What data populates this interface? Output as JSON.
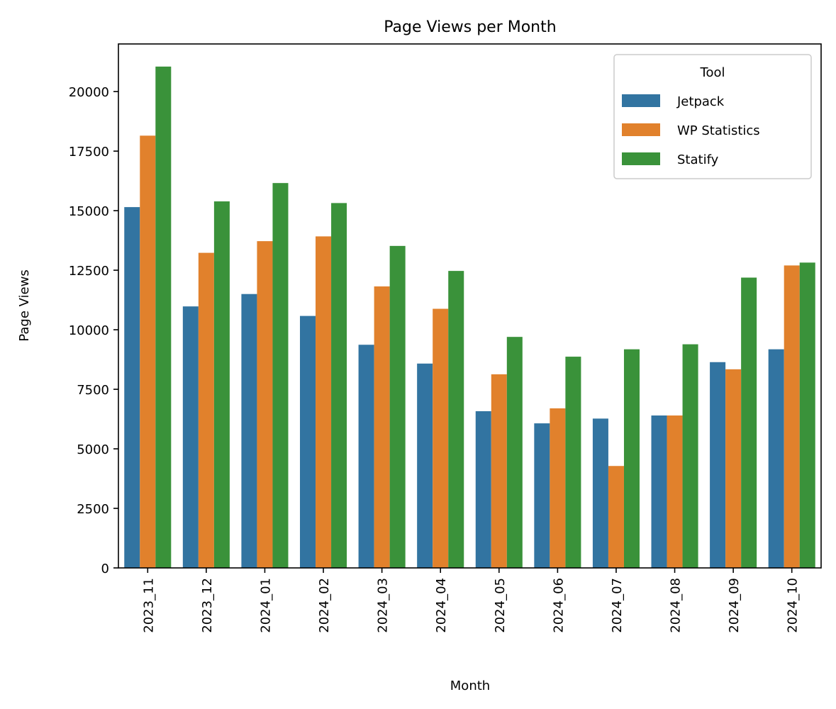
{
  "chart_data": {
    "type": "bar",
    "title": "Page Views per Month",
    "xlabel": "Month",
    "ylabel": "Page Views",
    "ylim": [
      0,
      22000
    ],
    "yticks": [
      0,
      2500,
      5000,
      7500,
      10000,
      12500,
      15000,
      17500,
      20000
    ],
    "grid": false,
    "legend_title": "Tool",
    "legend_position": "top-right",
    "categories": [
      "2023_11",
      "2023_12",
      "2024_01",
      "2024_02",
      "2024_03",
      "2024_04",
      "2024_05",
      "2024_06",
      "2024_07",
      "2024_08",
      "2024_09",
      "2024_10"
    ],
    "series": [
      {
        "name": "Jetpack",
        "color": "#3274a1",
        "values": [
          15150,
          10980,
          11500,
          10580,
          9370,
          8580,
          6580,
          6070,
          6270,
          6400,
          8640,
          9180
        ]
      },
      {
        "name": "WP Statistics",
        "color": "#e1812c",
        "values": [
          18150,
          13230,
          13720,
          13920,
          11820,
          10880,
          8130,
          6700,
          4280,
          6400,
          8340,
          12700
        ]
      },
      {
        "name": "Statify",
        "color": "#3a923a",
        "values": [
          21050,
          15390,
          16160,
          15320,
          13520,
          12470,
          9700,
          8870,
          9180,
          9390,
          12190,
          12820
        ]
      }
    ]
  }
}
